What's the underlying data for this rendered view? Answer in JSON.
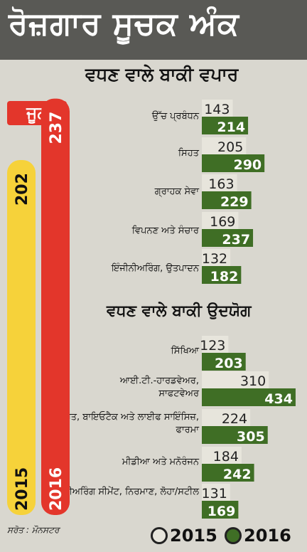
{
  "title": "ਰੋਜ਼ਗਾਰ ਸੂਚਕ ਅੰਕ",
  "month": "ਜੂਨ",
  "source": "ਸਰੋਤ : ਮੌਨਸਟਰ",
  "colors": {
    "bar_2015_side": "#e7e5dc",
    "bar_2016_side": "#3f6e25",
    "big_2015": "#f6d23a",
    "big_2016": "#e3362b",
    "title_bg": "#595955",
    "background": "#d9d7cf"
  },
  "legend": [
    {
      "label": "2015",
      "color": "#e7e5dc"
    },
    {
      "label": "2016",
      "color": "#3f6e25"
    }
  ],
  "chart_data": [
    {
      "type": "bar",
      "title": "",
      "categories": [
        "2015",
        "2016"
      ],
      "values": [
        202,
        237
      ],
      "orientation": "vertical"
    },
    {
      "type": "bar",
      "orientation": "horizontal",
      "title": "ਵਧਣ ਵਾਲੇ ਬਾਕੀ ਵਪਾਰ",
      "categories": [
        "ਉੱਚ ਪ੍ਰਬੰਧਨ",
        "ਸਿਹਤ",
        "ਗ੍ਰਾਹਕ ਸੇਵਾ",
        "ਵਿਪਨਣ ਅਤੇ ਸੰਚਾਰ",
        "ਇੰਜੀਨੀਅਰਿੰਗ, ਉਤਪਾਦਨ"
      ],
      "series": [
        {
          "name": "2015",
          "values": [
            143,
            205,
            163,
            169,
            132
          ]
        },
        {
          "name": "2016",
          "values": [
            214,
            290,
            229,
            237,
            182
          ]
        }
      ]
    },
    {
      "type": "bar",
      "orientation": "horizontal",
      "title": "ਵਧਣ ਵਾਲੇ ਬਾਕੀ ਉਦਯੋਗ",
      "categories": [
        "ਸਿੱਖਿਆ",
        "ਆਈ.ਟੀ.-ਹਾਰਡਵੇਅਰ, ਸਾਫਟਵੇਅਰ",
        "ਸਿਹਤ, ਬਾਇਓਟੈਕ ਅਤੇ ਲਾਈਫ ਸਾਇੰਸਿਜ਼, ਫਾਰਮਾ",
        "ਮੀਡੀਆ ਅਤੇ ਮਨੋਰੰਜਨ",
        "ਇੰਜੀਨੀਅਰਿੰਗ ਸੀਮੇਂਟ, ਨਿਰਮਾਣ, ਲੋਹਾ/ਸਟੀਲ"
      ],
      "series": [
        {
          "name": "2015",
          "values": [
            123,
            310,
            224,
            184,
            131
          ]
        },
        {
          "name": "2016",
          "values": [
            203,
            434,
            305,
            242,
            169
          ]
        }
      ]
    }
  ]
}
